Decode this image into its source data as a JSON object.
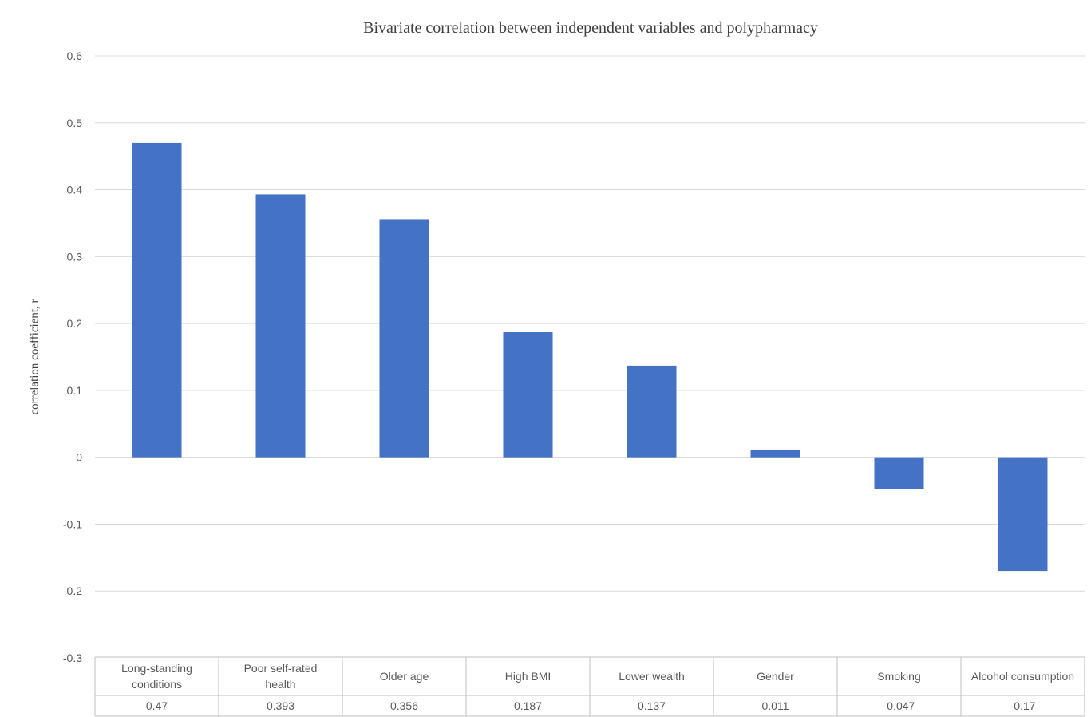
{
  "chart_data": {
    "type": "bar",
    "title": "Bivariate correlation between independent variables and polypharmacy",
    "xlabel": "",
    "ylabel": "correlation coefficient, r",
    "ylim": [
      -0.3,
      0.6
    ],
    "y_ticks": [
      "0.6",
      "0.5",
      "0.4",
      "0.3",
      "0.2",
      "0.1",
      "0",
      "-0.1",
      "-0.2",
      "-0.3"
    ],
    "y_tick_values": [
      0.6,
      0.5,
      0.4,
      0.3,
      0.2,
      0.1,
      0,
      -0.1,
      -0.2,
      -0.3
    ],
    "grid": true,
    "categories": [
      [
        "Long-standing",
        "conditions"
      ],
      [
        "Poor self-rated",
        "health"
      ],
      [
        "Older age"
      ],
      [
        "High BMI"
      ],
      [
        "Lower wealth"
      ],
      [
        "Gender"
      ],
      [
        "Smoking"
      ],
      [
        "Alcohol consumption"
      ]
    ],
    "values": [
      0.47,
      0.393,
      0.356,
      0.187,
      0.137,
      0.011,
      -0.047,
      -0.17
    ],
    "value_labels": [
      "0.47",
      "0.393",
      "0.356",
      "0.187",
      "0.137",
      "0.011",
      "-0.047",
      "-0.17"
    ],
    "bar_color": "#4472C4",
    "grid_color": "#D9D9D9",
    "data_table": true
  }
}
